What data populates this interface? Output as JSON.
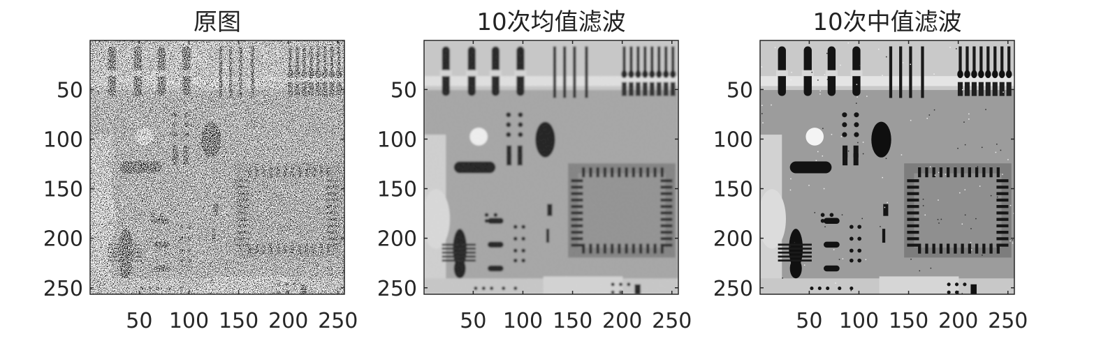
{
  "figure": {
    "background": "#ffffff",
    "text_color": "#262626",
    "panels": [
      {
        "id": "original",
        "title": "原图",
        "variant": "noisy"
      },
      {
        "id": "mean",
        "title": "10次均值滤波",
        "variant": "mean"
      },
      {
        "id": "median",
        "title": "10次中值滤波",
        "variant": "median"
      }
    ],
    "axes": {
      "x_ticks": [
        "50",
        "100",
        "150",
        "200",
        "250"
      ],
      "y_ticks": [
        "50",
        "100",
        "150",
        "200",
        "250"
      ],
      "image_size": 256,
      "colormap": "gray"
    }
  }
}
